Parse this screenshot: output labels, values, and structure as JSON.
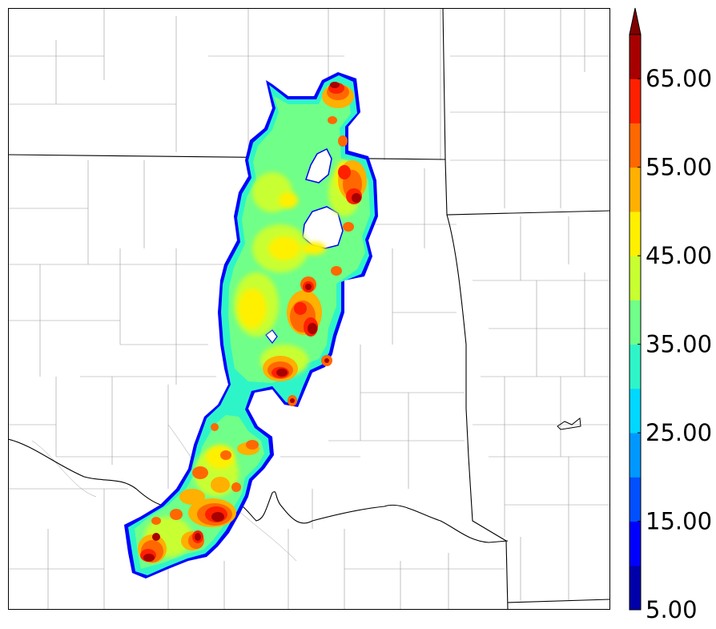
{
  "map": {
    "background_color": "#ffffff",
    "state_border_color": "#000000",
    "county_border_color": "#9a9a9a"
  },
  "colorbar": {
    "min": 5.0,
    "max": 70.0,
    "extend": "max",
    "levels": [
      5,
      10,
      15,
      20,
      25,
      30,
      35,
      40,
      45,
      50,
      55,
      60,
      65,
      70
    ],
    "colors": [
      "#0000aa",
      "#0000ff",
      "#0050ff",
      "#0098ff",
      "#00d8ff",
      "#2ef5c8",
      "#70ff88",
      "#c8ff30",
      "#fff000",
      "#ffb000",
      "#ff6800",
      "#ff2000",
      "#a80000"
    ],
    "extend_color": "#800000",
    "tick_labels": [
      "5.00",
      "15.00",
      "25.00",
      "35.00",
      "45.00",
      "55.00",
      "65.00"
    ]
  }
}
